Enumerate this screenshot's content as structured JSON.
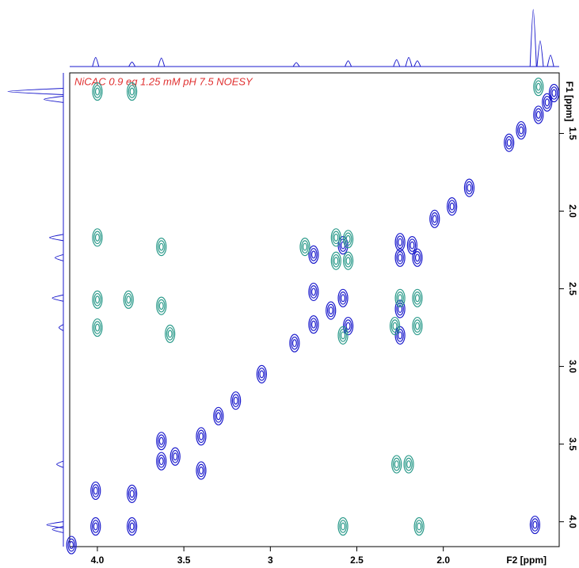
{
  "chart_data": {
    "type": "contour",
    "title": "NiCAC 0.9 eq 1.25 mM pH 7.5 NOESY",
    "x_label": "F2 [ppm]",
    "y_label": "F1 [ppm]",
    "xlim": [
      4.16,
      1.33
    ],
    "ylim": [
      1.11,
      4.16
    ],
    "xticks": [
      {
        "value": 4.0,
        "label": "4.0"
      },
      3.5,
      3.0,
      2.5,
      {
        "value": 2.0,
        "label": "2.0"
      }
    ],
    "yticks": [
      1.5,
      {
        "value": 2.0,
        "label": "2.0"
      },
      2.5,
      {
        "value": 3.0,
        "label": "3.0"
      },
      3.5,
      {
        "value": 4.0,
        "label": "4.0"
      }
    ],
    "series": [
      {
        "color": "#1a1acc",
        "x": [
          4.01,
          4.01,
          3.8,
          3.8,
          3.63,
          3.63,
          3.4,
          3.4,
          2.75,
          2.58,
          2.25,
          2.18,
          2.25,
          2.15,
          2.75,
          2.58,
          2.55,
          2.25,
          2.25,
          2.75,
          2.86,
          2.65,
          2.05,
          1.85,
          1.95,
          1.62,
          1.55,
          1.45,
          1.4,
          1.36,
          3.05,
          3.2,
          3.3,
          3.55,
          4.15,
          1.47
        ],
        "y": [
          3.8,
          4.03,
          3.82,
          4.03,
          3.48,
          3.61,
          3.45,
          3.67,
          2.28,
          2.22,
          2.2,
          2.22,
          2.3,
          2.3,
          2.52,
          2.56,
          2.74,
          2.63,
          2.8,
          2.73,
          2.85,
          2.64,
          2.05,
          1.85,
          1.97,
          1.56,
          1.48,
          1.38,
          1.3,
          1.24,
          3.05,
          3.22,
          3.32,
          3.58,
          4.15,
          4.02
        ]
      },
      {
        "color": "#2a9a8a",
        "x": [
          4.0,
          3.8,
          4.0,
          3.63,
          4.0,
          4.0,
          3.82,
          3.63,
          3.58,
          2.62,
          2.55,
          2.62,
          2.55,
          2.8,
          2.25,
          2.15,
          2.28,
          2.15,
          2.58,
          2.27,
          2.2,
          2.58,
          2.14,
          1.45
        ],
        "y": [
          1.23,
          1.23,
          2.17,
          2.23,
          2.57,
          2.75,
          2.57,
          2.61,
          2.79,
          2.17,
          2.18,
          2.32,
          2.32,
          2.23,
          2.56,
          2.56,
          2.74,
          2.74,
          2.8,
          3.63,
          3.63,
          4.03,
          4.03,
          1.2
        ]
      }
    ],
    "f2_projection": {
      "x": [
        4.01,
        3.8,
        3.63,
        2.85,
        2.55,
        2.27,
        2.2,
        2.15,
        1.48,
        1.44,
        1.38
      ],
      "intensity": [
        0.16,
        0.08,
        0.15,
        0.07,
        0.1,
        0.12,
        0.16,
        0.1,
        1.0,
        0.45,
        0.2
      ]
    },
    "f1_projection": {
      "y": [
        1.23,
        1.28,
        2.17,
        2.3,
        2.56,
        2.75,
        3.63,
        4.02,
        4.05
      ],
      "intensity": [
        1.0,
        0.35,
        0.25,
        0.15,
        0.2,
        0.08,
        0.12,
        0.3,
        0.2
      ]
    }
  }
}
